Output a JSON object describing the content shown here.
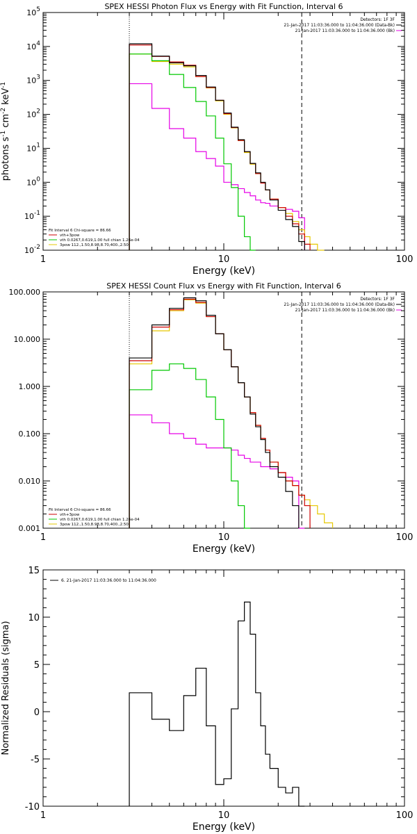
{
  "chart_data": [
    {
      "type": "line",
      "title": "SPEX HESSI Photon Flux vs Energy with Fit Function, Interval 6",
      "xlabel": "Energy (keV)",
      "ylabel": "photons s-1 cm-2 keV-1",
      "xscale": "log",
      "yscale": "log",
      "xlim": [
        1,
        100
      ],
      "ylim": [
        0.01,
        100000
      ],
      "x_ticks": [
        "1",
        "10",
        "100"
      ],
      "y_ticks": [
        "10^-2",
        "10^-1",
        "10^0",
        "10^1",
        "10^2",
        "10^3",
        "10^4",
        "10^5"
      ],
      "legend_topright": [
        "Detectors: 1F 3F",
        "21-Jan-2017 11:03:36.000 to 11:04:36.000 (Data-Bk)",
        "21-Jan-2017 11:03:36.000 to 11:04:36.000 (Bk)"
      ],
      "legend_bottomleft": [
        "Fit Interval 6   Chi-square = 86.66",
        "vth+3pow",
        "vth 0.0267,0.619,1.00  full chian 1.26e-04",
        "3pow 112.,1.50,8.98,8.70,400.,2.50"
      ],
      "vlines": [
        3.0,
        27.0
      ],
      "bin_edges": [
        3.0,
        4.0,
        5.0,
        6.0,
        7.0,
        8.0,
        9.0,
        10.0,
        11.0,
        12.0,
        13.0,
        14.0,
        15.0,
        16.0,
        17.0,
        18.0,
        20.0,
        22.0,
        24.0,
        26.0,
        28.0,
        30.0,
        33.0,
        36.0,
        40.0,
        45.0
      ],
      "series": [
        {
          "name": "Data-Bk",
          "color": "#000000",
          "values": [
            12000,
            5200,
            3300,
            2700,
            1400,
            640,
            260,
            110,
            42,
            18,
            8.0,
            3.6,
            1.9,
            1.0,
            0.6,
            0.3,
            0.15,
            0.08,
            0.05,
            0.018,
            null,
            null,
            null,
            null,
            null
          ]
        },
        {
          "name": "vth+3pow",
          "color": "#cc0000",
          "values": [
            11000,
            5100,
            3500,
            2800,
            1300,
            620,
            260,
            105,
            41,
            17,
            8.0,
            3.6,
            1.8,
            0.95,
            0.6,
            0.32,
            0.18,
            0.1,
            0.06,
            0.03,
            0.015,
            null,
            null,
            null,
            null
          ]
        },
        {
          "name": "vth",
          "color": "#00c800",
          "values": [
            6000,
            3800,
            1500,
            620,
            240,
            90,
            20,
            3.5,
            0.7,
            0.1,
            0.025,
            0.006,
            null,
            null,
            null,
            null,
            null,
            null,
            null,
            null,
            null,
            null,
            null,
            null,
            null
          ]
        },
        {
          "name": "3pow",
          "color": "#e6c800",
          "values": [
            6000,
            3600,
            3000,
            2500,
            1300,
            600,
            250,
            100,
            40,
            17,
            7.5,
            3.4,
            1.8,
            0.95,
            0.6,
            0.32,
            0.18,
            0.12,
            0.07,
            0.04,
            0.025,
            0.015,
            0.01,
            null,
            null
          ]
        },
        {
          "name": "Bk",
          "color": "#e600e6",
          "values": [
            800,
            150,
            38,
            20,
            8.0,
            5.0,
            3.0,
            1.0,
            0.85,
            0.65,
            0.5,
            0.4,
            0.3,
            0.25,
            0.24,
            0.2,
            0.18,
            0.16,
            0.14,
            0.09,
            null,
            null,
            null,
            null,
            null
          ]
        }
      ]
    },
    {
      "type": "line",
      "title": "SPEX HESSI Count Flux vs Energy with Fit Function, Interval 6",
      "xlabel": "Energy (keV)",
      "ylabel": "",
      "xscale": "log",
      "yscale": "log",
      "xlim": [
        1,
        100
      ],
      "ylim": [
        0.001,
        100
      ],
      "x_ticks": [
        "1",
        "10",
        "100"
      ],
      "y_ticks": [
        "0.001",
        "0.010",
        "0.100",
        "1.000",
        "10.000",
        "100.000"
      ],
      "legend_topright": [
        "Detectors: 1F 3F",
        "21-Jan-2017 11:03:36.000 to 11:04:36.000 (Data-Bk)",
        "21-Jan-2017 11:03:36.000 to 11:04:36.000 (Bk)"
      ],
      "legend_bottomleft": [
        "Fit Interval 6   Chi-square = 86.66",
        "vth+3pow",
        "vth 0.0267,0.619,1.00  full chian 1.26e-04",
        "3pow 112.,1.50,8.98,8.70,400.,2.50"
      ],
      "vlines": [
        3.0,
        27.0
      ],
      "bin_edges": [
        3.0,
        4.0,
        5.0,
        6.0,
        7.0,
        8.0,
        9.0,
        10.0,
        11.0,
        12.0,
        13.0,
        14.0,
        15.0,
        16.0,
        17.0,
        18.0,
        20.0,
        22.0,
        24.0,
        26.0,
        28.0,
        30.0,
        33.0,
        36.0,
        40.0,
        45.0
      ],
      "series": [
        {
          "name": "Data-Bk",
          "color": "#000000",
          "values": [
            4.0,
            20,
            45,
            75,
            65,
            32,
            13,
            6.0,
            2.6,
            1.2,
            0.6,
            0.26,
            0.14,
            0.075,
            0.04,
            0.02,
            0.012,
            0.006,
            0.003,
            null,
            null,
            null,
            null,
            null,
            null
          ]
        },
        {
          "name": "vth+3pow",
          "color": "#cc0000",
          "values": [
            3.5,
            18,
            42,
            70,
            60,
            30,
            13,
            6.0,
            2.6,
            1.2,
            0.6,
            0.28,
            0.15,
            0.08,
            0.045,
            0.025,
            0.015,
            0.01,
            0.008,
            0.005,
            0.003,
            null,
            null,
            null,
            null
          ]
        },
        {
          "name": "vth",
          "color": "#00c800",
          "values": [
            0.85,
            2.2,
            3.0,
            2.4,
            1.4,
            0.6,
            0.2,
            0.05,
            0.01,
            0.003,
            0.001,
            null,
            null,
            null,
            null,
            null,
            null,
            null,
            null,
            null,
            null,
            null,
            null,
            null,
            null
          ]
        },
        {
          "name": "3pow",
          "color": "#e6c800",
          "values": [
            3.0,
            15,
            40,
            68,
            58,
            30,
            13,
            6.0,
            2.6,
            1.2,
            0.6,
            0.28,
            0.15,
            0.08,
            0.045,
            0.025,
            0.015,
            0.01,
            0.008,
            0.005,
            0.004,
            0.003,
            0.002,
            0.0013,
            null
          ]
        },
        {
          "name": "Bk",
          "color": "#e600e6",
          "values": [
            0.25,
            0.17,
            0.1,
            0.08,
            0.06,
            0.05,
            0.05,
            0.05,
            0.045,
            0.035,
            0.03,
            0.025,
            0.025,
            0.02,
            0.02,
            0.018,
            0.015,
            0.012,
            0.01,
            0.001,
            null,
            null,
            null,
            null,
            null
          ]
        }
      ]
    },
    {
      "type": "line",
      "title": "",
      "xlabel": "Energy (keV)",
      "ylabel": "Normalized Residuals (sigma)",
      "xscale": "log",
      "yscale": "linear",
      "xlim": [
        1,
        100
      ],
      "ylim": [
        -10,
        15
      ],
      "x_ticks": [
        "1",
        "10",
        "100"
      ],
      "y_ticks": [
        "-10",
        "-5",
        "0",
        "5",
        "10",
        "15"
      ],
      "legend": [
        "6. 21-Jan-2017 11:03:36.000 to 11:04:36.000"
      ],
      "bin_edges": [
        3.0,
        4.0,
        5.0,
        6.0,
        7.0,
        8.0,
        9.0,
        10.0,
        11.0,
        12.0,
        13.0,
        14.0,
        15.0,
        16.0,
        17.0,
        18.0,
        20.0,
        22.0,
        24.0,
        26.0,
        28.0
      ],
      "series": [
        {
          "name": "6. 21-Jan-2017 11:03:36.000 to 11:04:36.000",
          "color": "#000000",
          "values": [
            2.0,
            -0.8,
            -2.0,
            1.7,
            4.6,
            -1.5,
            -7.7,
            -7.1,
            0.3,
            9.6,
            11.6,
            8.2,
            2.0,
            -1.5,
            -4.5,
            -6.0,
            -8.0,
            -8.6,
            -8.0,
            -10.5
          ]
        }
      ]
    }
  ]
}
